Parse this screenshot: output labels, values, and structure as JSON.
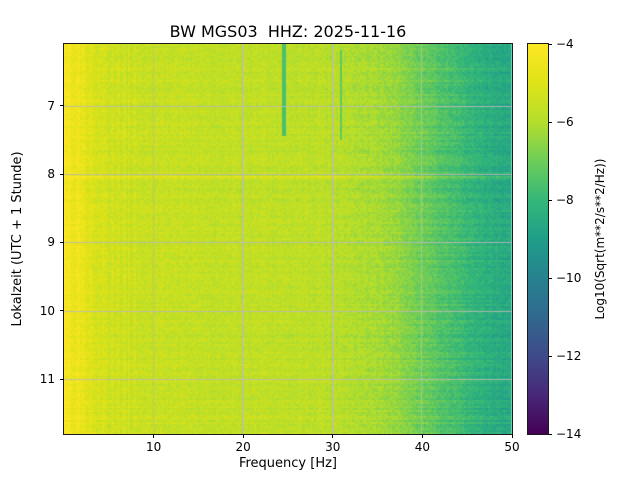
{
  "figure": {
    "title": "BW MGS03  HHZ: 2025-11-16",
    "xlabel": "Frequency [Hz]",
    "ylabel": "Lokalzeit (UTC + 1 Stunde)",
    "colorbar": {
      "label": "Log10(Sqrt(m**2/s**2/Hz))"
    }
  },
  "chart_data": {
    "type": "heatmap",
    "title": "BW MGS03  HHZ: 2025-11-16",
    "xlabel": "Frequency [Hz]",
    "ylabel": "Lokalzeit (UTC + 1 Stunde)",
    "x_range": [
      0,
      50
    ],
    "y_range": [
      6.1,
      11.8
    ],
    "x_tick_values": [
      10,
      20,
      30,
      40,
      50
    ],
    "x_tick_labels": [
      "10",
      "20",
      "30",
      "40",
      "50"
    ],
    "y_tick_values": [
      7,
      8,
      9,
      10,
      11
    ],
    "y_tick_labels": [
      "7",
      "8",
      "9",
      "10",
      "11"
    ],
    "grid": true,
    "grid_color": "#b8b8b8",
    "colormap": "viridis",
    "value_label": "Log10(Sqrt(m**2/s**2/Hz))",
    "value_range": [
      -14,
      -4
    ],
    "colorbar_tick_values": [
      -4,
      -6,
      -8,
      -10,
      -12,
      -14
    ],
    "colorbar_tick_labels": [
      "−4",
      "−6",
      "−8",
      "−10",
      "−12",
      "−14"
    ],
    "spectrum_profile": {
      "frequencies_hz": [
        0.3,
        1,
        2,
        3,
        5,
        8,
        12,
        16,
        20,
        25,
        30,
        34,
        37,
        39,
        41,
        44,
        47,
        50
      ],
      "mean_log10_amplitude": [
        -4.25,
        -4.4,
        -4.7,
        -5.0,
        -5.3,
        -5.5,
        -5.6,
        -5.65,
        -5.7,
        -5.75,
        -5.85,
        -6.1,
        -6.4,
        -6.8,
        -7.2,
        -7.8,
        -8.3,
        -8.6
      ]
    },
    "features": [
      {
        "type": "vertical-notch",
        "frequency_hz": 24.6,
        "time_range": [
          6.1,
          7.45
        ],
        "value": -7.6
      },
      {
        "type": "vertical-notch",
        "frequency_hz": 30.9,
        "time_range": [
          6.2,
          7.5
        ],
        "value": -7.2
      },
      {
        "type": "horizontal-line",
        "time": 8.05,
        "value_offset": 0.6
      }
    ]
  }
}
